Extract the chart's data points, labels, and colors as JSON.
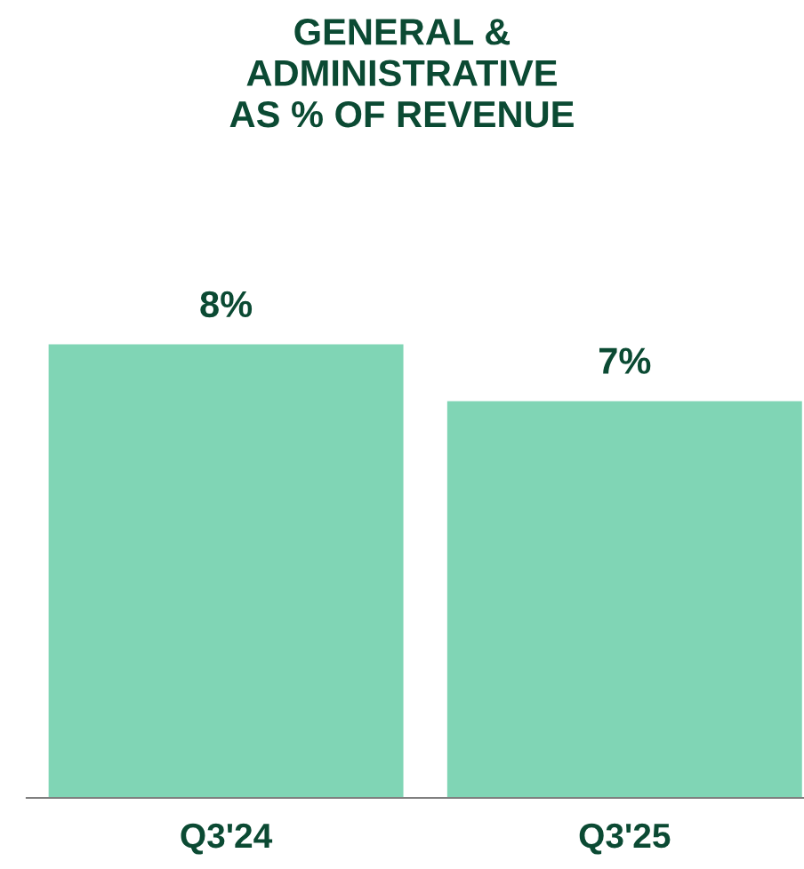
{
  "chart_data": {
    "type": "bar",
    "title": "GENERAL &\nADMINISTRATIVE\nAS % OF REVENUE",
    "categories": [
      "Q3'24",
      "Q3'25"
    ],
    "values": [
      8,
      7
    ],
    "value_labels": [
      "8%",
      "7%"
    ],
    "color": "#80d5b5",
    "grid": false,
    "legend": false
  }
}
